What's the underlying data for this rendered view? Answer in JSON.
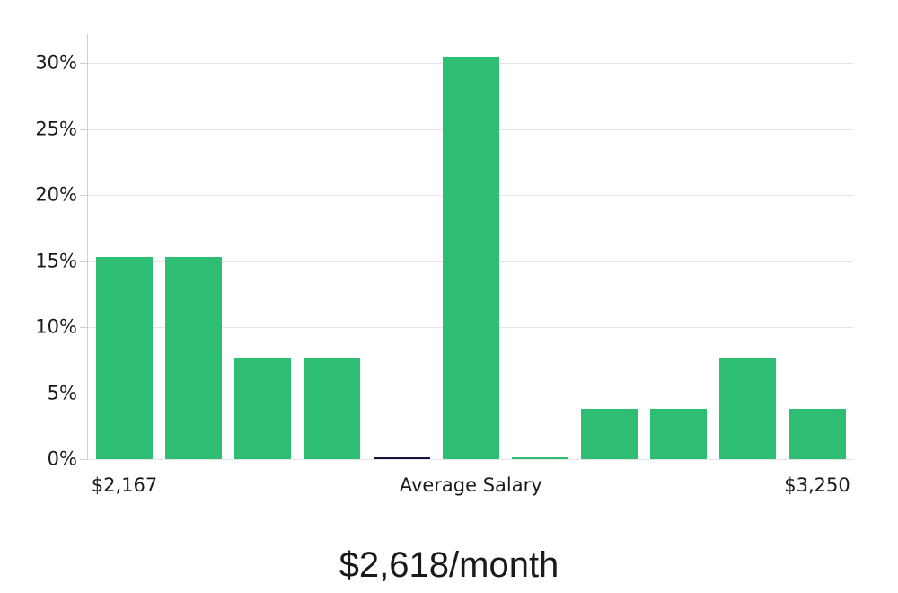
{
  "chart_data": {
    "type": "bar",
    "title": "$2,618/month",
    "xlabel": "",
    "ylabel": "",
    "ylim": [
      0,
      32.2
    ],
    "grid": true,
    "legend": false,
    "y_ticks": [
      {
        "value": 0,
        "label": "0%"
      },
      {
        "value": 5,
        "label": "5%"
      },
      {
        "value": 10,
        "label": "10%"
      },
      {
        "value": 15,
        "label": "15%"
      },
      {
        "value": 20,
        "label": "20%"
      },
      {
        "value": 25,
        "label": "25%"
      },
      {
        "value": 30,
        "label": "30%"
      }
    ],
    "bars": [
      {
        "value": 15.3,
        "color": "#2dbe73"
      },
      {
        "value": 15.3,
        "color": "#2dbe73"
      },
      {
        "value": 7.6,
        "color": "#2dbe73"
      },
      {
        "value": 7.6,
        "color": "#2dbe73"
      },
      {
        "value": 0.15,
        "color": "#15153d"
      },
      {
        "value": 30.5,
        "color": "#2dbe73"
      },
      {
        "value": 0.15,
        "color": "#2dbe73"
      },
      {
        "value": 3.8,
        "color": "#2dbe73"
      },
      {
        "value": 3.8,
        "color": "#2dbe73"
      },
      {
        "value": 7.6,
        "color": "#2dbe73"
      },
      {
        "value": 3.8,
        "color": "#2dbe73"
      }
    ],
    "x_tick_labels": [
      {
        "label": "$2,167",
        "bar_index": 0
      },
      {
        "label": "Average Salary",
        "bar_index": 5
      },
      {
        "label": "$3,250",
        "bar_index": 10
      }
    ],
    "colors": {
      "bar_default": "#2dbe73",
      "bar_special": "#15153d",
      "gridline": "#e4e4e4",
      "axis_line": "#d0d0d0",
      "tick": "#cfcfcf",
      "text": "#1a1a1a"
    }
  }
}
